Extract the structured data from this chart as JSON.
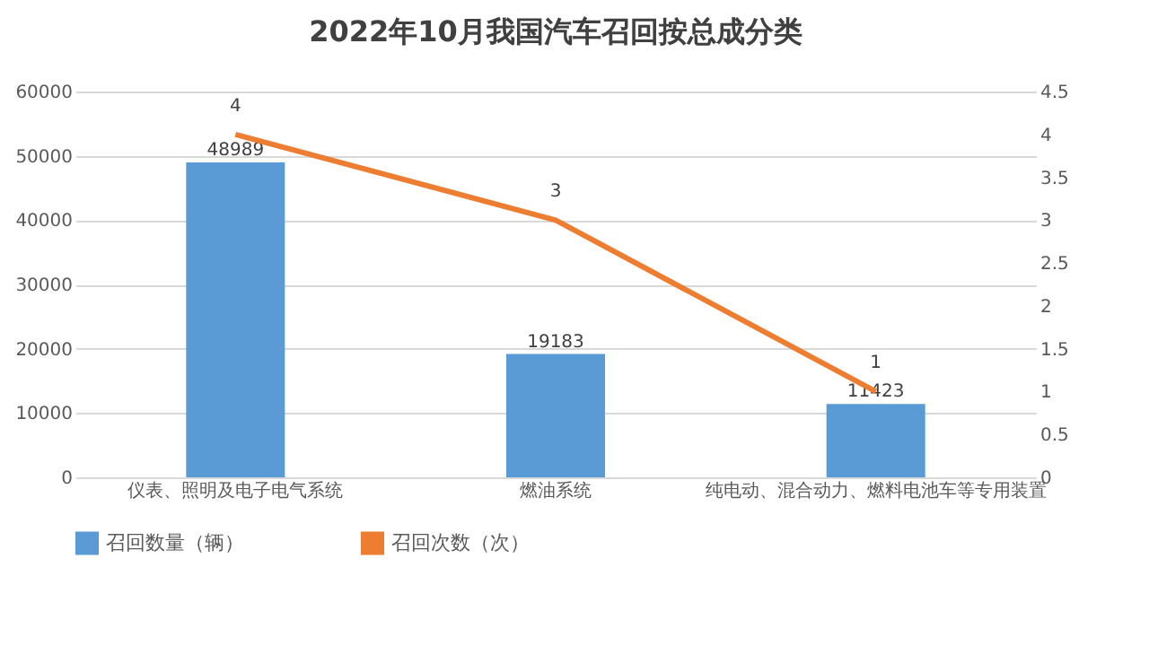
{
  "chart_data": {
    "type": "bar",
    "title": "2022年10月我国汽车召回按总成分类",
    "categories": [
      "仪表、照明及电子电气系统",
      "燃油系统",
      "纯电动、混合动力、燃料电池车等专用装置"
    ],
    "series": [
      {
        "name": "召回数量（辆）",
        "color": "#5b9bd5",
        "values": [
          48989,
          19183,
          11423
        ]
      },
      {
        "name": "召回次数（次）",
        "type": "line",
        "axis": "y2",
        "color": "#ed7d31",
        "values": [
          4,
          3,
          1
        ]
      }
    ],
    "ylim": [
      0,
      60000
    ],
    "yticks": [
      0,
      10000,
      20000,
      30000,
      40000,
      50000,
      60000
    ],
    "y2lim": [
      0,
      4.5
    ],
    "y2ticks": [
      0,
      0.5,
      1,
      1.5,
      2,
      2.5,
      3,
      3.5,
      4,
      4.5
    ],
    "grid": "y",
    "legend": "bottom",
    "data_labels": true,
    "marker": "none",
    "line_style": "solid"
  }
}
